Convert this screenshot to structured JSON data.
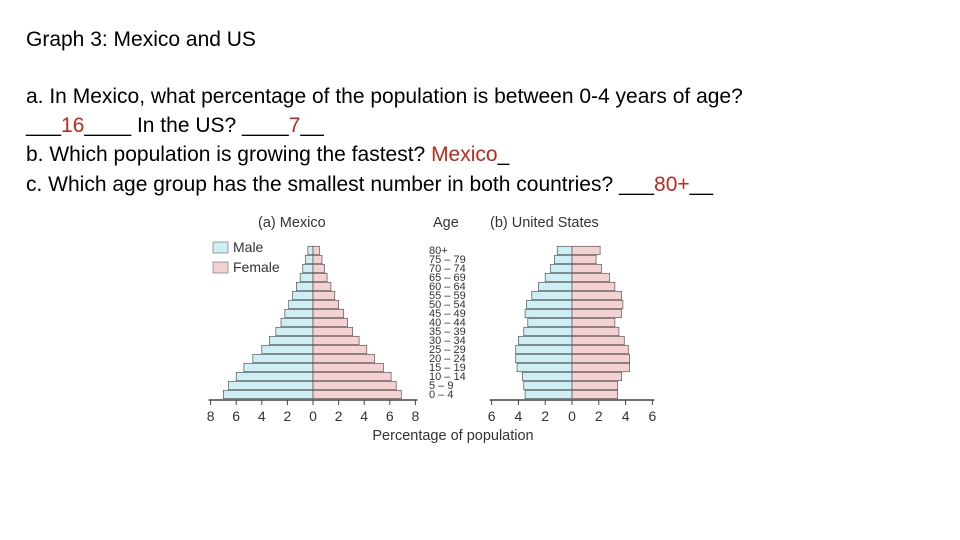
{
  "title": "Graph 3: Mexico and US",
  "questions": {
    "a": {
      "text": "a. In Mexico, what percentage of the population is between 0-4 years of age?",
      "blank_before_1": "___",
      "answer_1": "16",
      "middle": "____ In the US? ____",
      "answer_2": "7",
      "end": "__"
    },
    "b": {
      "text": "b. Which population is growing the fastest? ",
      "answer": "Mexico",
      "end": "_"
    },
    "c": {
      "text": "c. Which age group has the smallest number in both countries? ___",
      "answer": "80+",
      "end": "__"
    }
  },
  "colors": {
    "male": "#cdeef5",
    "female": "#f6d1d1",
    "answer": "#c0271f",
    "bar_border": "#555555"
  },
  "chart_data": {
    "type": "bar",
    "subtype": "population-pyramid",
    "xlabel": "Percentage of population",
    "age_axis_title": "Age",
    "age_groups": [
      "80+",
      "75 – 79",
      "70 – 74",
      "65 – 69",
      "60 – 64",
      "55 – 59",
      "50 – 54",
      "45 – 49",
      "40 – 44",
      "35 – 39",
      "30 – 34",
      "25 – 29",
      "20 – 24",
      "15 – 19",
      "10 – 14",
      "5 – 9",
      "0 – 4"
    ],
    "legend": [
      {
        "label": "Male",
        "color": "#cdeef5"
      },
      {
        "label": "Female",
        "color": "#f6d1d1"
      }
    ],
    "panels": [
      {
        "title": "(a)  Mexico",
        "xlim": [
          -8,
          8
        ],
        "xticks": [
          "8",
          "6",
          "4",
          "2",
          "0",
          "2",
          "4",
          "6",
          "8"
        ],
        "male": [
          0.4,
          0.6,
          0.8,
          1.0,
          1.3,
          1.6,
          1.9,
          2.2,
          2.5,
          2.9,
          3.4,
          4.0,
          4.7,
          5.4,
          6.0,
          6.6,
          7.0
        ],
        "female": [
          0.5,
          0.7,
          0.9,
          1.1,
          1.4,
          1.7,
          2.0,
          2.4,
          2.7,
          3.1,
          3.6,
          4.2,
          4.8,
          5.5,
          6.1,
          6.5,
          6.9
        ]
      },
      {
        "title": "(b)  United States",
        "xlim": [
          -6,
          6
        ],
        "xticks": [
          "6",
          "4",
          "2",
          "0",
          "2",
          "4",
          "6"
        ],
        "male": [
          1.1,
          1.3,
          1.6,
          2.0,
          2.5,
          3.0,
          3.4,
          3.5,
          3.3,
          3.6,
          4.0,
          4.2,
          4.2,
          4.1,
          3.7,
          3.6,
          3.5
        ],
        "female": [
          2.1,
          1.8,
          2.2,
          2.8,
          3.2,
          3.7,
          3.8,
          3.7,
          3.2,
          3.5,
          3.9,
          4.2,
          4.3,
          4.3,
          3.7,
          3.4,
          3.4
        ]
      }
    ]
  }
}
